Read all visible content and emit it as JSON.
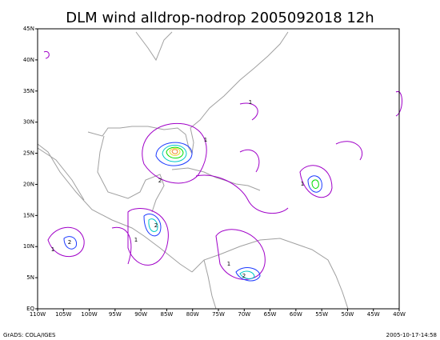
{
  "map": {
    "title": "DLM wind alldrop-nodrop 2005092018 12h",
    "lat_labels": [
      "EQ",
      "5N",
      "10N",
      "15N",
      "20N",
      "25N",
      "30N",
      "35N",
      "40N",
      "45N"
    ],
    "lon_labels": [
      "110W",
      "105W",
      "100W",
      "95W",
      "90W",
      "85W",
      "80W",
      "75W",
      "70W",
      "65W",
      "60W",
      "55W",
      "50W",
      "45W",
      "40W"
    ],
    "contour_labels": [
      "1",
      "1",
      "2",
      "2",
      "1",
      "2",
      "1",
      "1",
      "2",
      "1"
    ],
    "footer_left": "GrADS: COLA/IGES",
    "footer_right": "2005-10-17-14:58"
  }
}
